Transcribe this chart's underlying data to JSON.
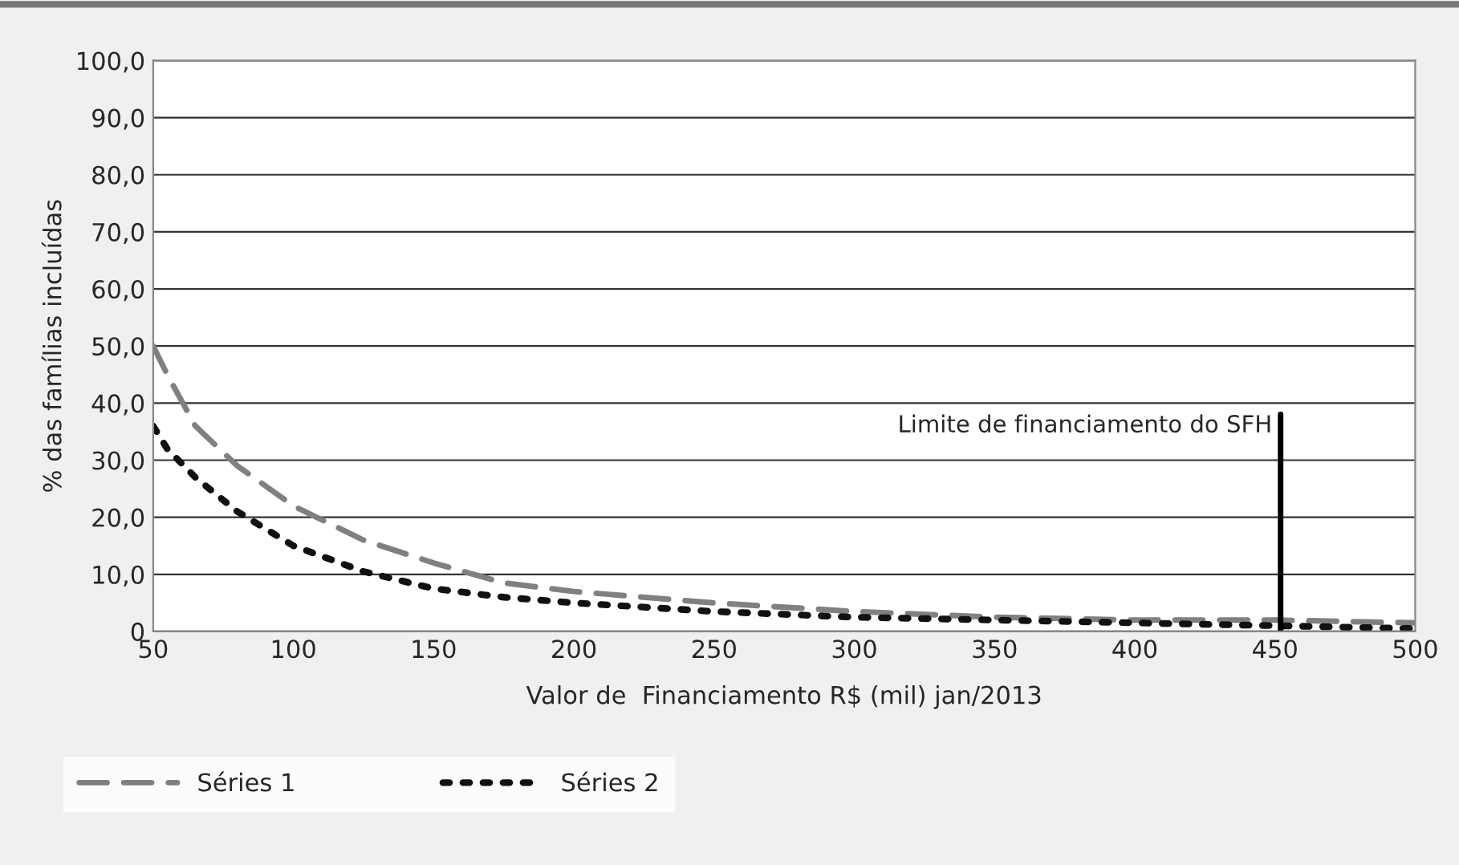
{
  "chart_data": {
    "type": "line",
    "xlabel": "Valor de  Financiamento R$ (mil) jan/2013",
    "ylabel": "% das famílias incluídas",
    "xlim": [
      50,
      500
    ],
    "xticks": [
      50,
      100,
      150,
      200,
      250,
      300,
      350,
      400,
      450,
      500
    ],
    "ylim": [
      0,
      100
    ],
    "yticks": [
      0,
      {
        "value": 10,
        "label": "10,0"
      },
      {
        "value": 20,
        "label": "20,0"
      },
      {
        "value": 30,
        "label": "30,0"
      },
      {
        "value": 40,
        "label": "40,0"
      },
      {
        "value": 50,
        "label": "50,0"
      },
      {
        "value": 60,
        "label": "60,0"
      },
      {
        "value": 70,
        "label": "70,0"
      },
      {
        "value": 80,
        "label": "80,0"
      },
      {
        "value": 90,
        "label": "90,0"
      },
      {
        "value": 100,
        "label": "100,0"
      }
    ],
    "grid": "y",
    "legend": "bottom",
    "marker": "none",
    "series": [
      {
        "name": "Séries 1",
        "color": "#808080",
        "line_style": "dashed",
        "x": [
          50,
          55,
          65,
          80,
          100,
          125,
          150,
          175,
          200,
          250,
          300,
          350,
          400,
          450,
          500
        ],
        "values": [
          50,
          45,
          36,
          29,
          22,
          16,
          12,
          8.5,
          7,
          5,
          3.5,
          2.5,
          2,
          2,
          1.5
        ]
      },
      {
        "name": "Séries 2",
        "color": "#111111",
        "line_style": "dotted",
        "x": [
          50,
          55,
          65,
          80,
          100,
          125,
          150,
          175,
          200,
          250,
          300,
          350,
          400,
          450,
          500
        ],
        "values": [
          36,
          32,
          27,
          21,
          15,
          10.5,
          7.5,
          6,
          5,
          3.5,
          2.5,
          2,
          1.5,
          1,
          0.5
        ]
      }
    ],
    "ref_lines": [
      {
        "axis": "x",
        "value": 452,
        "label": "Limite de financiamento do SFH",
        "color": "#000000"
      }
    ]
  }
}
